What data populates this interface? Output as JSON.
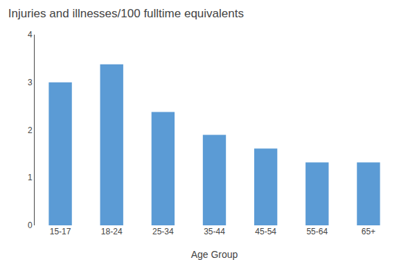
{
  "chart_data": {
    "type": "bar",
    "title": "Injuries and illnesses/100 fulltime equivalents",
    "xlabel": "Age Group",
    "categories": [
      "15-17",
      "18-24",
      "25-34",
      "35-44",
      "45-54",
      "55-64",
      "65+"
    ],
    "values": [
      3.0,
      3.38,
      2.38,
      1.9,
      1.61,
      1.32,
      1.32
    ],
    "color": "#5B9BD5",
    "ylim": [
      0,
      4
    ],
    "yticks": [
      0,
      1,
      2,
      3,
      4
    ],
    "grid": false
  }
}
